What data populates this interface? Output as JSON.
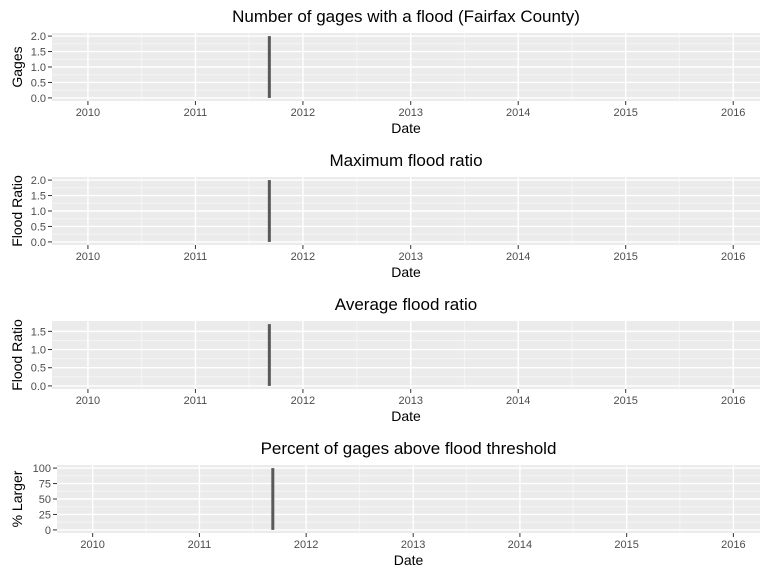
{
  "colors": {
    "panel_bg": "#ebebeb",
    "grid_major": "#ffffff",
    "grid_minor": "#f5f5f5",
    "bar": "#595959",
    "tick": "#333333"
  },
  "chart_data": [
    {
      "type": "bar",
      "title": "Number of gages with a flood (Fairfax County)",
      "xlabel": "Date",
      "ylabel": "Gages",
      "x_ticks": [
        "2010",
        "2011",
        "2012",
        "2013",
        "2014",
        "2015",
        "2016"
      ],
      "y_ticks": [
        "0.0",
        "0.5",
        "1.0",
        "1.5",
        "2.0"
      ],
      "y_tick_values": [
        0,
        0.5,
        1.0,
        1.5,
        2.0
      ],
      "xlim": [
        "2009-09-01",
        "2016-04-01"
      ],
      "ylim": [
        -0.1,
        2.1
      ],
      "bars": [
        {
          "x": "2011-09-09",
          "y": 2
        }
      ]
    },
    {
      "type": "bar",
      "title": "Maximum flood ratio",
      "xlabel": "Date",
      "ylabel": "Flood Ratio",
      "x_ticks": [
        "2010",
        "2011",
        "2012",
        "2013",
        "2014",
        "2015",
        "2016"
      ],
      "y_ticks": [
        "0.0",
        "0.5",
        "1.0",
        "1.5",
        "2.0"
      ],
      "y_tick_values": [
        0,
        0.5,
        1.0,
        1.5,
        2.0
      ],
      "xlim": [
        "2009-09-01",
        "2016-04-01"
      ],
      "ylim": [
        -0.1,
        2.1
      ],
      "bars": [
        {
          "x": "2011-09-09",
          "y": 2.0
        }
      ]
    },
    {
      "type": "bar",
      "title": "Average flood ratio",
      "xlabel": "Date",
      "ylabel": "Flood Ratio",
      "x_ticks": [
        "2010",
        "2011",
        "2012",
        "2013",
        "2014",
        "2015",
        "2016"
      ],
      "y_ticks": [
        "0.0",
        "0.5",
        "1.0",
        "1.5"
      ],
      "y_tick_values": [
        0,
        0.5,
        1.0,
        1.5
      ],
      "xlim": [
        "2009-09-01",
        "2016-04-01"
      ],
      "ylim": [
        -0.085,
        1.785
      ],
      "bars": [
        {
          "x": "2011-09-09",
          "y": 1.7
        }
      ]
    },
    {
      "type": "bar",
      "title": "Percent of gages above flood threshold",
      "xlabel": "Date",
      "ylabel": "% Larger",
      "x_ticks": [
        "2010",
        "2011",
        "2012",
        "2013",
        "2014",
        "2015",
        "2016"
      ],
      "y_ticks": [
        "0",
        "25",
        "50",
        "75",
        "100"
      ],
      "y_tick_values": [
        0,
        25,
        50,
        75,
        100
      ],
      "xlim": [
        "2009-09-01",
        "2016-04-01"
      ],
      "ylim": [
        -5,
        105
      ],
      "bars": [
        {
          "x": "2011-09-09",
          "y": 100
        }
      ]
    }
  ]
}
